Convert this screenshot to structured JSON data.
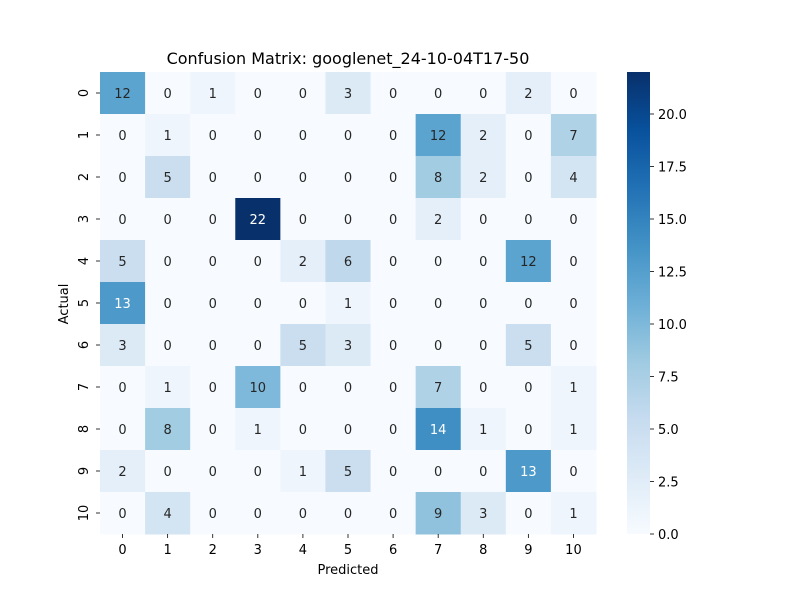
{
  "chart_data": {
    "type": "heatmap",
    "title": "Confusion Matrix: googlenet_24-10-04T17-50",
    "xlabel": "Predicted",
    "ylabel": "Actual",
    "x_categories": [
      "0",
      "1",
      "2",
      "3",
      "4",
      "5",
      "6",
      "7",
      "8",
      "9",
      "10"
    ],
    "y_categories": [
      "0",
      "1",
      "2",
      "3",
      "4",
      "5",
      "6",
      "7",
      "8",
      "9",
      "10"
    ],
    "matrix": [
      [
        12,
        0,
        1,
        0,
        0,
        3,
        0,
        0,
        0,
        2,
        0
      ],
      [
        0,
        1,
        0,
        0,
        0,
        0,
        0,
        12,
        2,
        0,
        7
      ],
      [
        0,
        5,
        0,
        0,
        0,
        0,
        0,
        8,
        2,
        0,
        4
      ],
      [
        0,
        0,
        0,
        22,
        0,
        0,
        0,
        2,
        0,
        0,
        0
      ],
      [
        5,
        0,
        0,
        0,
        2,
        6,
        0,
        0,
        0,
        12,
        0
      ],
      [
        13,
        0,
        0,
        0,
        0,
        1,
        0,
        0,
        0,
        0,
        0
      ],
      [
        3,
        0,
        0,
        0,
        5,
        3,
        0,
        0,
        0,
        5,
        0
      ],
      [
        0,
        1,
        0,
        10,
        0,
        0,
        0,
        7,
        0,
        0,
        1
      ],
      [
        0,
        8,
        0,
        1,
        0,
        0,
        0,
        14,
        1,
        0,
        1
      ],
      [
        2,
        0,
        0,
        0,
        1,
        5,
        0,
        0,
        0,
        13,
        0
      ],
      [
        0,
        4,
        0,
        0,
        0,
        0,
        0,
        9,
        3,
        0,
        1
      ]
    ],
    "value_range": [
      0,
      22
    ],
    "colorbar_ticks": [
      "0.0",
      "2.5",
      "5.0",
      "7.5",
      "10.0",
      "12.5",
      "15.0",
      "17.5",
      "20.0"
    ],
    "colormap": "Blues",
    "grid": false
  }
}
